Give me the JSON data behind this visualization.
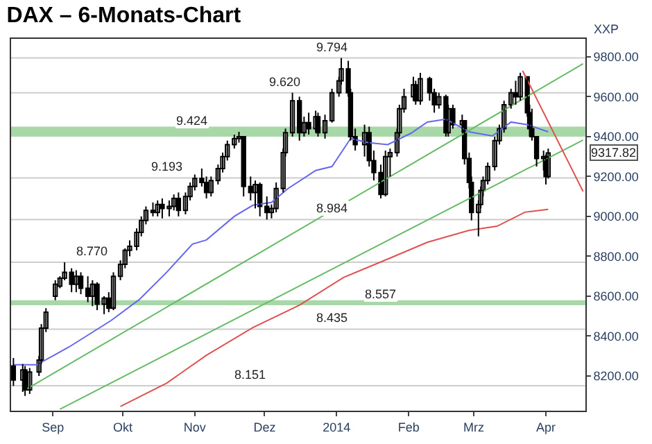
{
  "chart_data": {
    "type": "candlestick",
    "title": "DAX – 6-Monats-Chart",
    "x": [
      "2013-08-15",
      "2013-08-19",
      "2013-08-20",
      "2013-08-22",
      "2013-08-26",
      "2013-08-27",
      "2013-08-29",
      "2013-09-02",
      "2013-09-04",
      "2013-09-06",
      "2013-09-09",
      "2013-09-11",
      "2013-09-13",
      "2013-09-16",
      "2013-09-18",
      "2013-09-20",
      "2013-09-23",
      "2013-09-25",
      "2013-09-27",
      "2013-09-30",
      "2013-10-02",
      "2013-10-04",
      "2013-10-07",
      "2013-10-09",
      "2013-10-11",
      "2013-10-14",
      "2013-10-16",
      "2013-10-18",
      "2013-10-21",
      "2013-10-23",
      "2013-10-25",
      "2013-10-28",
      "2013-10-30",
      "2013-11-01",
      "2013-11-04",
      "2013-11-06",
      "2013-11-08",
      "2013-11-11",
      "2013-11-13",
      "2013-11-15",
      "2013-11-18",
      "2013-11-20",
      "2013-11-22",
      "2013-11-25",
      "2013-11-27",
      "2013-11-29",
      "2013-12-02",
      "2013-12-04",
      "2013-12-06",
      "2013-12-09",
      "2013-12-10",
      "2013-12-13",
      "2013-12-16",
      "2013-12-18",
      "2013-12-20",
      "2013-12-23",
      "2013-12-24",
      "2013-12-27",
      "2013-12-30",
      "2014-01-02",
      "2014-01-03",
      "2014-01-06",
      "2014-01-07",
      "2014-01-09",
      "2014-01-13",
      "2014-01-15",
      "2014-01-17",
      "2014-01-20",
      "2014-01-22",
      "2014-01-24",
      "2014-01-27",
      "2014-01-28",
      "2014-01-30",
      "2014-02-03",
      "2014-02-04",
      "2014-02-06",
      "2014-02-10",
      "2014-02-12",
      "2014-02-14",
      "2014-02-17",
      "2014-02-18",
      "2014-02-20",
      "2014-02-24",
      "2014-02-25",
      "2014-02-27",
      "2014-02-28",
      "2014-03-03",
      "2014-03-04",
      "2014-03-05",
      "2014-03-07",
      "2014-03-10",
      "2014-03-12",
      "2014-03-14",
      "2014-03-17",
      "2014-03-19",
      "2014-03-21",
      "2014-03-24",
      "2014-03-25",
      "2014-03-26",
      "2014-03-28",
      "2014-03-31",
      "2014-04-01",
      "2014-04-02"
    ],
    "ohlc": [
      [
        8250,
        8290,
        8150,
        8180
      ],
      [
        8180,
        8260,
        8120,
        8230
      ],
      [
        8230,
        8250,
        8100,
        8130
      ],
      [
        8130,
        8240,
        8110,
        8220
      ],
      [
        8220,
        8300,
        8200,
        8280
      ],
      [
        8280,
        8460,
        8260,
        8440
      ],
      [
        8440,
        8540,
        8420,
        8520
      ],
      [
        8600,
        8680,
        8580,
        8660
      ],
      [
        8650,
        8700,
        8640,
        8690
      ],
      [
        8690,
        8770,
        8680,
        8720
      ],
      [
        8720,
        8740,
        8620,
        8660
      ],
      [
        8660,
        8730,
        8620,
        8700
      ],
      [
        8700,
        8720,
        8610,
        8640
      ],
      [
        8640,
        8700,
        8570,
        8600
      ],
      [
        8600,
        8680,
        8550,
        8660
      ],
      [
        8660,
        8670,
        8530,
        8560
      ],
      [
        8560,
        8600,
        8510,
        8590
      ],
      [
        8590,
        8620,
        8520,
        8540
      ],
      [
        8540,
        8720,
        8530,
        8700
      ],
      [
        8700,
        8780,
        8680,
        8760
      ],
      [
        8760,
        8840,
        8740,
        8830
      ],
      [
        8830,
        8880,
        8800,
        8850
      ],
      [
        8850,
        8940,
        8830,
        8920
      ],
      [
        8920,
        9000,
        8900,
        8980
      ],
      [
        8980,
        9050,
        8960,
        9030
      ],
      [
        9030,
        9070,
        9000,
        9020
      ],
      [
        9020,
        9080,
        9000,
        9060
      ],
      [
        9060,
        9090,
        8990,
        9040
      ],
      [
        9040,
        9080,
        9000,
        9050
      ],
      [
        9050,
        9110,
        9030,
        9090
      ],
      [
        9090,
        9120,
        9000,
        9030
      ],
      [
        9030,
        9120,
        9010,
        9100
      ],
      [
        9100,
        9170,
        9080,
        9150
      ],
      [
        9150,
        9210,
        9130,
        9190
      ],
      [
        9190,
        9240,
        9150,
        9170
      ],
      [
        9170,
        9200,
        9090,
        9120
      ],
      [
        9120,
        9200,
        9100,
        9180
      ],
      [
        9180,
        9260,
        9160,
        9240
      ],
      [
        9240,
        9320,
        9220,
        9300
      ],
      [
        9300,
        9380,
        9280,
        9360
      ],
      [
        9360,
        9410,
        9340,
        9390
      ],
      [
        9390,
        9424,
        9370,
        9400
      ],
      [
        9400,
        9400,
        9100,
        9150
      ],
      [
        9150,
        9200,
        9080,
        9120
      ],
      [
        9120,
        9180,
        9040,
        9160
      ],
      [
        9160,
        9170,
        9000,
        9050
      ],
      [
        9050,
        9100,
        8984,
        9020
      ],
      [
        9020,
        9060,
        8990,
        9040
      ],
      [
        9040,
        9170,
        9020,
        9140
      ],
      [
        9140,
        9340,
        9120,
        9320
      ],
      [
        9320,
        9440,
        9300,
        9420
      ],
      [
        9420,
        9620,
        9400,
        9580
      ],
      [
        9580,
        9600,
        9380,
        9420
      ],
      [
        9420,
        9500,
        9400,
        9470
      ],
      [
        9470,
        9520,
        9410,
        9440
      ],
      [
        9440,
        9530,
        9420,
        9500
      ],
      [
        9500,
        9520,
        9400,
        9420
      ],
      [
        9420,
        9510,
        9390,
        9480
      ],
      [
        9480,
        9640,
        9470,
        9620
      ],
      [
        9620,
        9700,
        9600,
        9680
      ],
      [
        9680,
        9794,
        9660,
        9740
      ],
      [
        9740,
        9780,
        9600,
        9620
      ],
      [
        9620,
        9640,
        9380,
        9400
      ],
      [
        9400,
        9440,
        9330,
        9360
      ],
      [
        9360,
        9460,
        9300,
        9420
      ],
      [
        9420,
        9450,
        9250,
        9280
      ],
      [
        9280,
        9330,
        9180,
        9220
      ],
      [
        9220,
        9260,
        9090,
        9110
      ],
      [
        9110,
        9330,
        9100,
        9300
      ],
      [
        9300,
        9340,
        9200,
        9320
      ],
      [
        9320,
        9440,
        9300,
        9420
      ],
      [
        9420,
        9560,
        9400,
        9540
      ],
      [
        9540,
        9640,
        9520,
        9600
      ],
      [
        9600,
        9700,
        9580,
        9660
      ],
      [
        9660,
        9680,
        9560,
        9580
      ],
      [
        9580,
        9720,
        9560,
        9690
      ],
      [
        9690,
        9700,
        9580,
        9620
      ],
      [
        9620,
        9640,
        9520,
        9560
      ],
      [
        9560,
        9620,
        9540,
        9600
      ],
      [
        9600,
        9610,
        9400,
        9420
      ],
      [
        9420,
        9560,
        9400,
        9540
      ],
      [
        9540,
        9560,
        9440,
        9460
      ],
      [
        9460,
        9510,
        9420,
        9480
      ],
      [
        9480,
        9480,
        9260,
        9290
      ],
      [
        9290,
        9320,
        9140,
        9170
      ],
      [
        9170,
        9200,
        8980,
        9020
      ],
      [
        9020,
        9080,
        8900,
        9060
      ],
      [
        9060,
        9150,
        9040,
        9130
      ],
      [
        9130,
        9200,
        9100,
        9180
      ],
      [
        9180,
        9270,
        9160,
        9250
      ],
      [
        9250,
        9400,
        9230,
        9380
      ],
      [
        9380,
        9460,
        9360,
        9440
      ],
      [
        9440,
        9580,
        9420,
        9560
      ],
      [
        9560,
        9640,
        9540,
        9620
      ],
      [
        9620,
        9680,
        9560,
        9600
      ],
      [
        9600,
        9720,
        9580,
        9700
      ],
      [
        9700,
        9700,
        9500,
        9520
      ],
      [
        9520,
        9560,
        9400,
        9440
      ],
      [
        9440,
        9540,
        9380,
        9400
      ],
      [
        9400,
        9400,
        9250,
        9290
      ],
      [
        9290,
        9330,
        9230,
        9300
      ],
      [
        9300,
        9310,
        9160,
        9200
      ],
      [
        9200,
        9340,
        9190,
        9317.82
      ]
    ],
    "color": "#000000",
    "series": [
      {
        "type": "line",
        "color": "#6666ee",
        "x": [
          "2013-08-15",
          "2013-08-25",
          "2013-09-08",
          "2013-09-26",
          "2013-10-08",
          "2013-10-20",
          "2013-10-31",
          "2013-11-06",
          "2013-11-18",
          "2013-11-26",
          "2013-12-04",
          "2013-12-11",
          "2013-12-23",
          "2013-12-30",
          "2014-01-07",
          "2014-01-15",
          "2014-01-23",
          "2014-02-02",
          "2014-02-09",
          "2014-02-17",
          "2014-02-27",
          "2014-03-09",
          "2014-03-17",
          "2014-03-24",
          "2014-04-02"
        ],
        "values": [
          8256,
          8256,
          8346,
          8478,
          8582,
          8721,
          8861,
          8882,
          9000,
          9056,
          9070,
          9139,
          9230,
          9250,
          9390,
          9369,
          9360,
          9417,
          9473,
          9487,
          9424,
          9403,
          9473,
          9460,
          9424
        ]
      },
      {
        "type": "line",
        "color": "#e05050",
        "x": [
          "2013-09-30",
          "2013-10-20",
          "2013-11-06",
          "2013-11-26",
          "2013-12-16",
          "2014-01-04",
          "2014-01-24",
          "2014-02-09",
          "2014-02-27",
          "2014-03-11",
          "2014-03-23",
          "2014-04-02"
        ],
        "values": [
          8047,
          8165,
          8304,
          8443,
          8555,
          8694,
          8791,
          8870,
          8930,
          8951,
          9021,
          9035
        ]
      },
      {
        "type": "line",
        "color": "#66bb66",
        "x": [
          "2013-08-21",
          "2014-04-17"
        ],
        "values": [
          8137,
          9765
        ]
      },
      {
        "type": "line",
        "color": "#66bb66",
        "x": [
          "2013-09-04",
          "2014-04-17"
        ],
        "values": [
          8033,
          9383
        ]
      },
      {
        "type": "line",
        "color": "#e05050",
        "x": [
          "2014-03-22",
          "2014-04-17"
        ],
        "values": [
          9730,
          9125
        ]
      }
    ],
    "xlim": [
      "2013-08-14",
      "2014-04-18"
    ],
    "xticks": [
      {
        "value": "2013-09-01",
        "label": "Sep"
      },
      {
        "value": "2013-10-01",
        "label": "Okt"
      },
      {
        "value": "2013-11-01",
        "label": "Nov"
      },
      {
        "value": "2013-12-01",
        "label": "Dez"
      },
      {
        "value": "2014-01-01",
        "label": "2014"
      },
      {
        "value": "2014-02-01",
        "label": "Feb"
      },
      {
        "value": "2014-03-01",
        "label": "Mrz"
      },
      {
        "value": "2014-04-01",
        "label": "Apr"
      }
    ],
    "ylim": [
      8026,
      9890
    ],
    "yticks": [
      {
        "value": 8200,
        "label": "8200.00"
      },
      {
        "value": 8400,
        "label": "8400.00"
      },
      {
        "value": 8600,
        "label": "8600.00"
      },
      {
        "value": 8800,
        "label": "8800.00"
      },
      {
        "value": 9000,
        "label": "9000.00"
      },
      {
        "value": 9200,
        "label": "9200.00"
      },
      {
        "value": 9400,
        "label": "9400.00"
      },
      {
        "value": 9600,
        "label": "9600.00"
      },
      {
        "value": 9800,
        "label": "9800.00"
      }
    ],
    "ylabel": "XXP",
    "ref_lines": [
      {
        "axis": "y",
        "value": 8151,
        "color": "#cccccc"
      },
      {
        "axis": "y",
        "value": 8435,
        "color": "#cccccc"
      },
      {
        "axis": "y",
        "value": 8770,
        "color": "#cccccc"
      },
      {
        "axis": "y",
        "value": 8984,
        "color": "#cccccc"
      },
      {
        "axis": "y",
        "value": 9193,
        "color": "#cccccc"
      },
      {
        "axis": "y",
        "value": 9620,
        "color": "#cccccc"
      },
      {
        "axis": "y",
        "value": 9794,
        "color": "#cccccc"
      }
    ],
    "bands": [
      {
        "axis": "y",
        "from": 8555,
        "to": 8580,
        "color": "#a8d8a8"
      },
      {
        "axis": "y",
        "from": 9400,
        "to": 9450,
        "color": "#a8d8a8"
      }
    ],
    "annotations": [
      {
        "text": "8.770",
        "x": "2013-09-18",
        "y": 8770
      },
      {
        "text": "9.193",
        "x": "2013-10-20",
        "y": 9193
      },
      {
        "text": "9.424",
        "x": "2013-10-31",
        "y": 9424
      },
      {
        "text": "9.620",
        "x": "2013-12-10",
        "y": 9620
      },
      {
        "text": "9.794",
        "x": "2013-12-30",
        "y": 9794
      },
      {
        "text": "8.984",
        "x": "2013-12-30",
        "y": 8984
      },
      {
        "text": "8.557",
        "x": "2014-01-20",
        "y": 8557
      },
      {
        "text": "8.435",
        "x": "2013-12-30",
        "y": 8435
      },
      {
        "text": "8.151",
        "x": "2013-11-25",
        "y": 8151
      },
      "9317.82"
    ],
    "grid": false
  }
}
